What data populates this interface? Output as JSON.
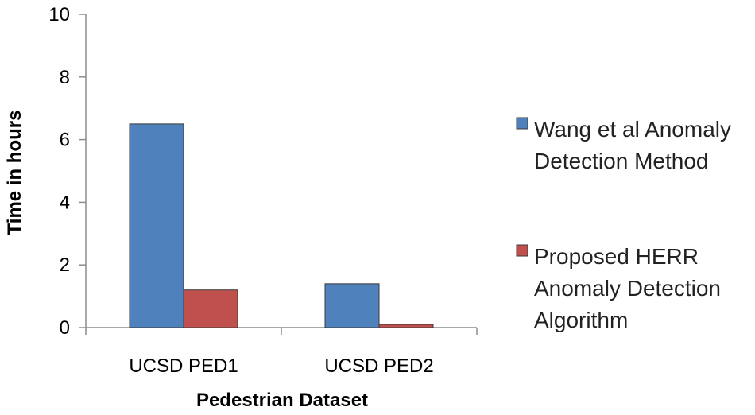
{
  "chart_data": {
    "type": "bar",
    "categories": [
      "UCSD PED1",
      "UCSD PED2"
    ],
    "series": [
      {
        "name": "Wang et al Anomaly Detection Method",
        "values": [
          6.5,
          1.4
        ],
        "color": "#4f81bd",
        "legend_lines": [
          "Wang et al Anomaly",
          "Detection Method"
        ]
      },
      {
        "name": "Proposed HERR Anomaly Detection Algorithm",
        "values": [
          1.2,
          0.1
        ],
        "color": "#c0504d",
        "legend_lines": [
          "Proposed HERR",
          "Anomaly Detection",
          "Algorithm"
        ]
      }
    ],
    "xlabel": "Pedestrian Dataset",
    "ylabel": "Time in hours",
    "ylim": [
      0,
      10
    ],
    "yticks": [
      0,
      2,
      4,
      6,
      8,
      10
    ],
    "grid": false,
    "legend_position": "right"
  }
}
